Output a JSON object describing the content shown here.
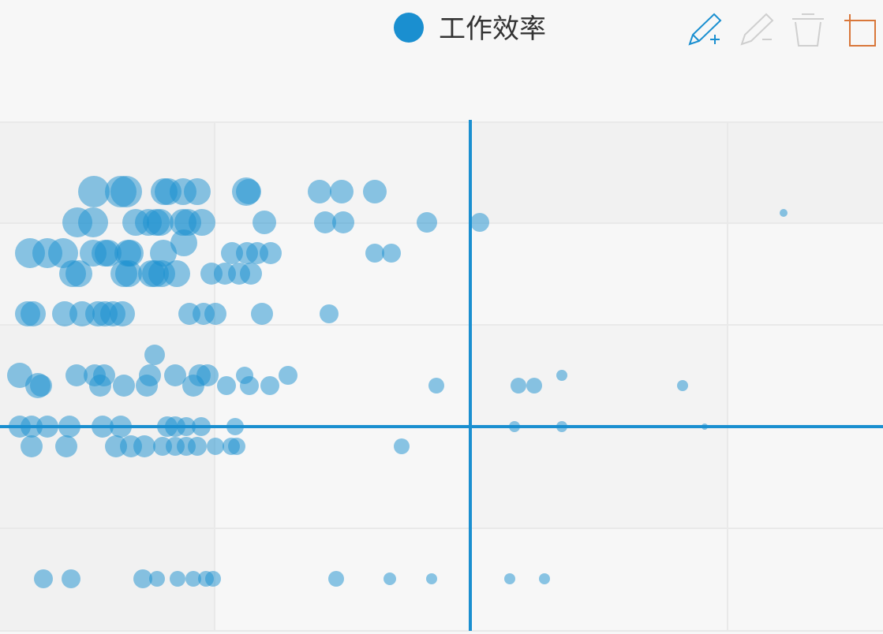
{
  "chart_data": {
    "type": "bubble",
    "series": [
      {
        "name": "工作效率",
        "color": "#1a8fd0",
        "x": [
          11.9,
          15.3,
          16.0,
          20.8,
          21.3,
          23.2,
          25.0,
          31.2,
          31.5,
          40.5,
          43.3,
          47.5,
          9.8,
          11.8,
          17.2,
          18.8,
          19.8,
          20.3,
          23.2,
          23.8,
          25.6,
          33.5,
          41.2,
          43.5,
          54.1,
          60.8,
          99.3,
          23.3,
          3.8,
          6.0,
          8.0,
          11.8,
          13.3,
          13.7,
          16.2,
          16.5,
          20.7,
          29.4,
          31.3,
          32.6,
          34.3,
          47.5,
          49.6,
          9.2,
          10.0,
          15.7,
          16.3,
          19.2,
          19.7,
          20.5,
          22.4,
          26.8,
          28.5,
          30.3,
          31.8,
          3.5,
          4.2,
          8.2,
          10.4,
          12.4,
          13.3,
          14.3,
          15.5,
          24.0,
          25.8,
          27.3,
          33.2,
          41.7,
          19.6,
          2.5,
          9.7,
          12.0,
          13.2,
          19.0,
          22.2,
          25.3,
          26.3,
          31.0,
          36.5,
          71.2,
          4.8,
          5.2,
          12.7,
          15.7,
          18.6,
          24.5,
          28.7,
          31.6,
          34.2,
          55.3,
          65.7,
          67.7,
          86.5,
          2.5,
          4.0,
          6.0,
          8.8,
          13.0,
          15.3,
          21.2,
          22.2,
          23.6,
          25.5,
          29.8,
          65.2,
          71.2,
          89.3,
          4.0,
          8.4,
          14.7,
          16.6,
          18.3,
          20.6,
          22.2,
          23.6,
          25.0,
          27.3,
          29.3,
          30.0,
          50.9,
          5.5,
          9.0,
          18.1,
          19.9,
          22.5,
          24.5,
          26.1,
          27.0,
          42.6,
          49.4,
          54.7,
          64.6,
          69.0
        ],
        "values": [
          55.7,
          55.7,
          55.7,
          55.7,
          55.7,
          55.7,
          55.7,
          55.7,
          55.7,
          55.7,
          55.7,
          55.7,
          51.8,
          51.8,
          51.8,
          51.8,
          51.8,
          51.8,
          51.8,
          51.8,
          51.8,
          51.8,
          51.8,
          51.8,
          51.8,
          51.8,
          53.0,
          49.2,
          47.9,
          47.9,
          47.9,
          47.9,
          47.9,
          47.9,
          47.9,
          47.9,
          47.9,
          47.9,
          47.9,
          47.9,
          47.9,
          47.9,
          47.9,
          45.3,
          45.3,
          45.3,
          45.3,
          45.3,
          45.3,
          45.3,
          45.3,
          45.3,
          45.3,
          45.3,
          45.3,
          40.2,
          40.2,
          40.2,
          40.2,
          40.2,
          40.2,
          40.2,
          40.2,
          40.2,
          40.2,
          40.2,
          40.2,
          40.2,
          35.0,
          32.4,
          32.4,
          32.4,
          32.4,
          32.4,
          32.4,
          32.4,
          32.4,
          32.4,
          32.4,
          32.4,
          31.1,
          31.1,
          31.1,
          31.1,
          31.1,
          31.1,
          31.1,
          31.1,
          31.1,
          31.1,
          31.1,
          31.1,
          31.1,
          25.9,
          25.9,
          25.9,
          25.9,
          25.9,
          25.9,
          25.9,
          25.9,
          25.9,
          25.9,
          25.9,
          25.9,
          25.9,
          25.9,
          23.4,
          23.4,
          23.4,
          23.4,
          23.4,
          23.4,
          23.4,
          23.4,
          23.4,
          23.4,
          23.4,
          23.4,
          23.4,
          6.6,
          6.6,
          6.6,
          6.6,
          6.6,
          6.6,
          6.6,
          6.6,
          6.6,
          6.6,
          6.6,
          6.6,
          6.6
        ],
        "sizes": [
          20,
          20,
          20,
          17,
          17,
          17,
          17,
          18,
          16,
          15,
          15,
          15,
          19,
          19,
          17,
          17,
          17,
          17,
          17,
          17,
          17,
          15,
          14,
          14,
          13,
          12,
          5,
          17,
          19,
          19,
          19,
          17,
          17,
          17,
          17,
          17,
          17,
          14,
          14,
          14,
          14,
          12,
          12,
          17,
          17,
          17,
          17,
          17,
          17,
          17,
          17,
          14,
          14,
          14,
          14,
          16,
          16,
          16,
          16,
          16,
          16,
          16,
          16,
          14,
          14,
          14,
          14,
          12,
          13,
          16,
          14,
          14,
          14,
          14,
          14,
          14,
          14,
          11,
          12,
          7,
          16,
          14,
          14,
          14,
          14,
          14,
          12,
          12,
          12,
          10,
          10,
          10,
          7,
          14,
          14,
          14,
          14,
          14,
          14,
          13,
          13,
          12,
          12,
          11,
          7,
          7,
          4,
          14,
          14,
          14,
          14,
          14,
          12,
          12,
          12,
          12,
          11,
          11,
          11,
          10,
          12,
          12,
          12,
          10,
          10,
          10,
          10,
          10,
          10,
          8,
          7,
          7,
          7
        ]
      }
    ],
    "xlim": [
      0,
      111.9
    ],
    "ylim": [
      0,
      64.5
    ],
    "x_reference": 59.6,
    "y_reference": 25.9,
    "opacity": 0.5
  }
}
